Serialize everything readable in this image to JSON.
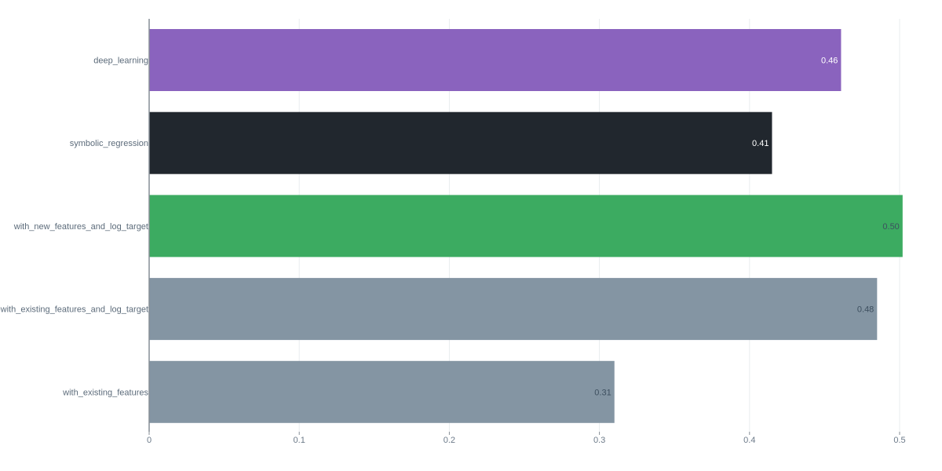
{
  "chart_data": {
    "type": "bar",
    "orientation": "horizontal",
    "title": "",
    "xlabel": "",
    "ylabel": "",
    "categories": [
      "deep_learning",
      "symbolic_regression",
      "with_new_features_and_log_target",
      "with_existing_features_and_log_target",
      "with_existing_features"
    ],
    "values": [
      0.461,
      0.415,
      0.502,
      0.485,
      0.31
    ],
    "data_labels": [
      "0.46",
      "0.41",
      "0.50",
      "0.48",
      "0.31"
    ],
    "colors": [
      "#8a63be",
      "#21272e",
      "#3cab61",
      "#8495a3",
      "#8495a3"
    ],
    "label_colors": [
      "#ffffff",
      "#ffffff",
      "#3d4f5f",
      "#3d4f5f",
      "#3d4f5f"
    ],
    "xlim": [
      0,
      0.5
    ],
    "xticks": [
      0,
      0.1,
      0.2,
      0.3,
      0.4,
      0.5
    ],
    "xtick_labels": [
      "0",
      "0.1",
      "0.2",
      "0.3",
      "0.4",
      "0.5"
    ],
    "grid": true,
    "legend": "none"
  }
}
